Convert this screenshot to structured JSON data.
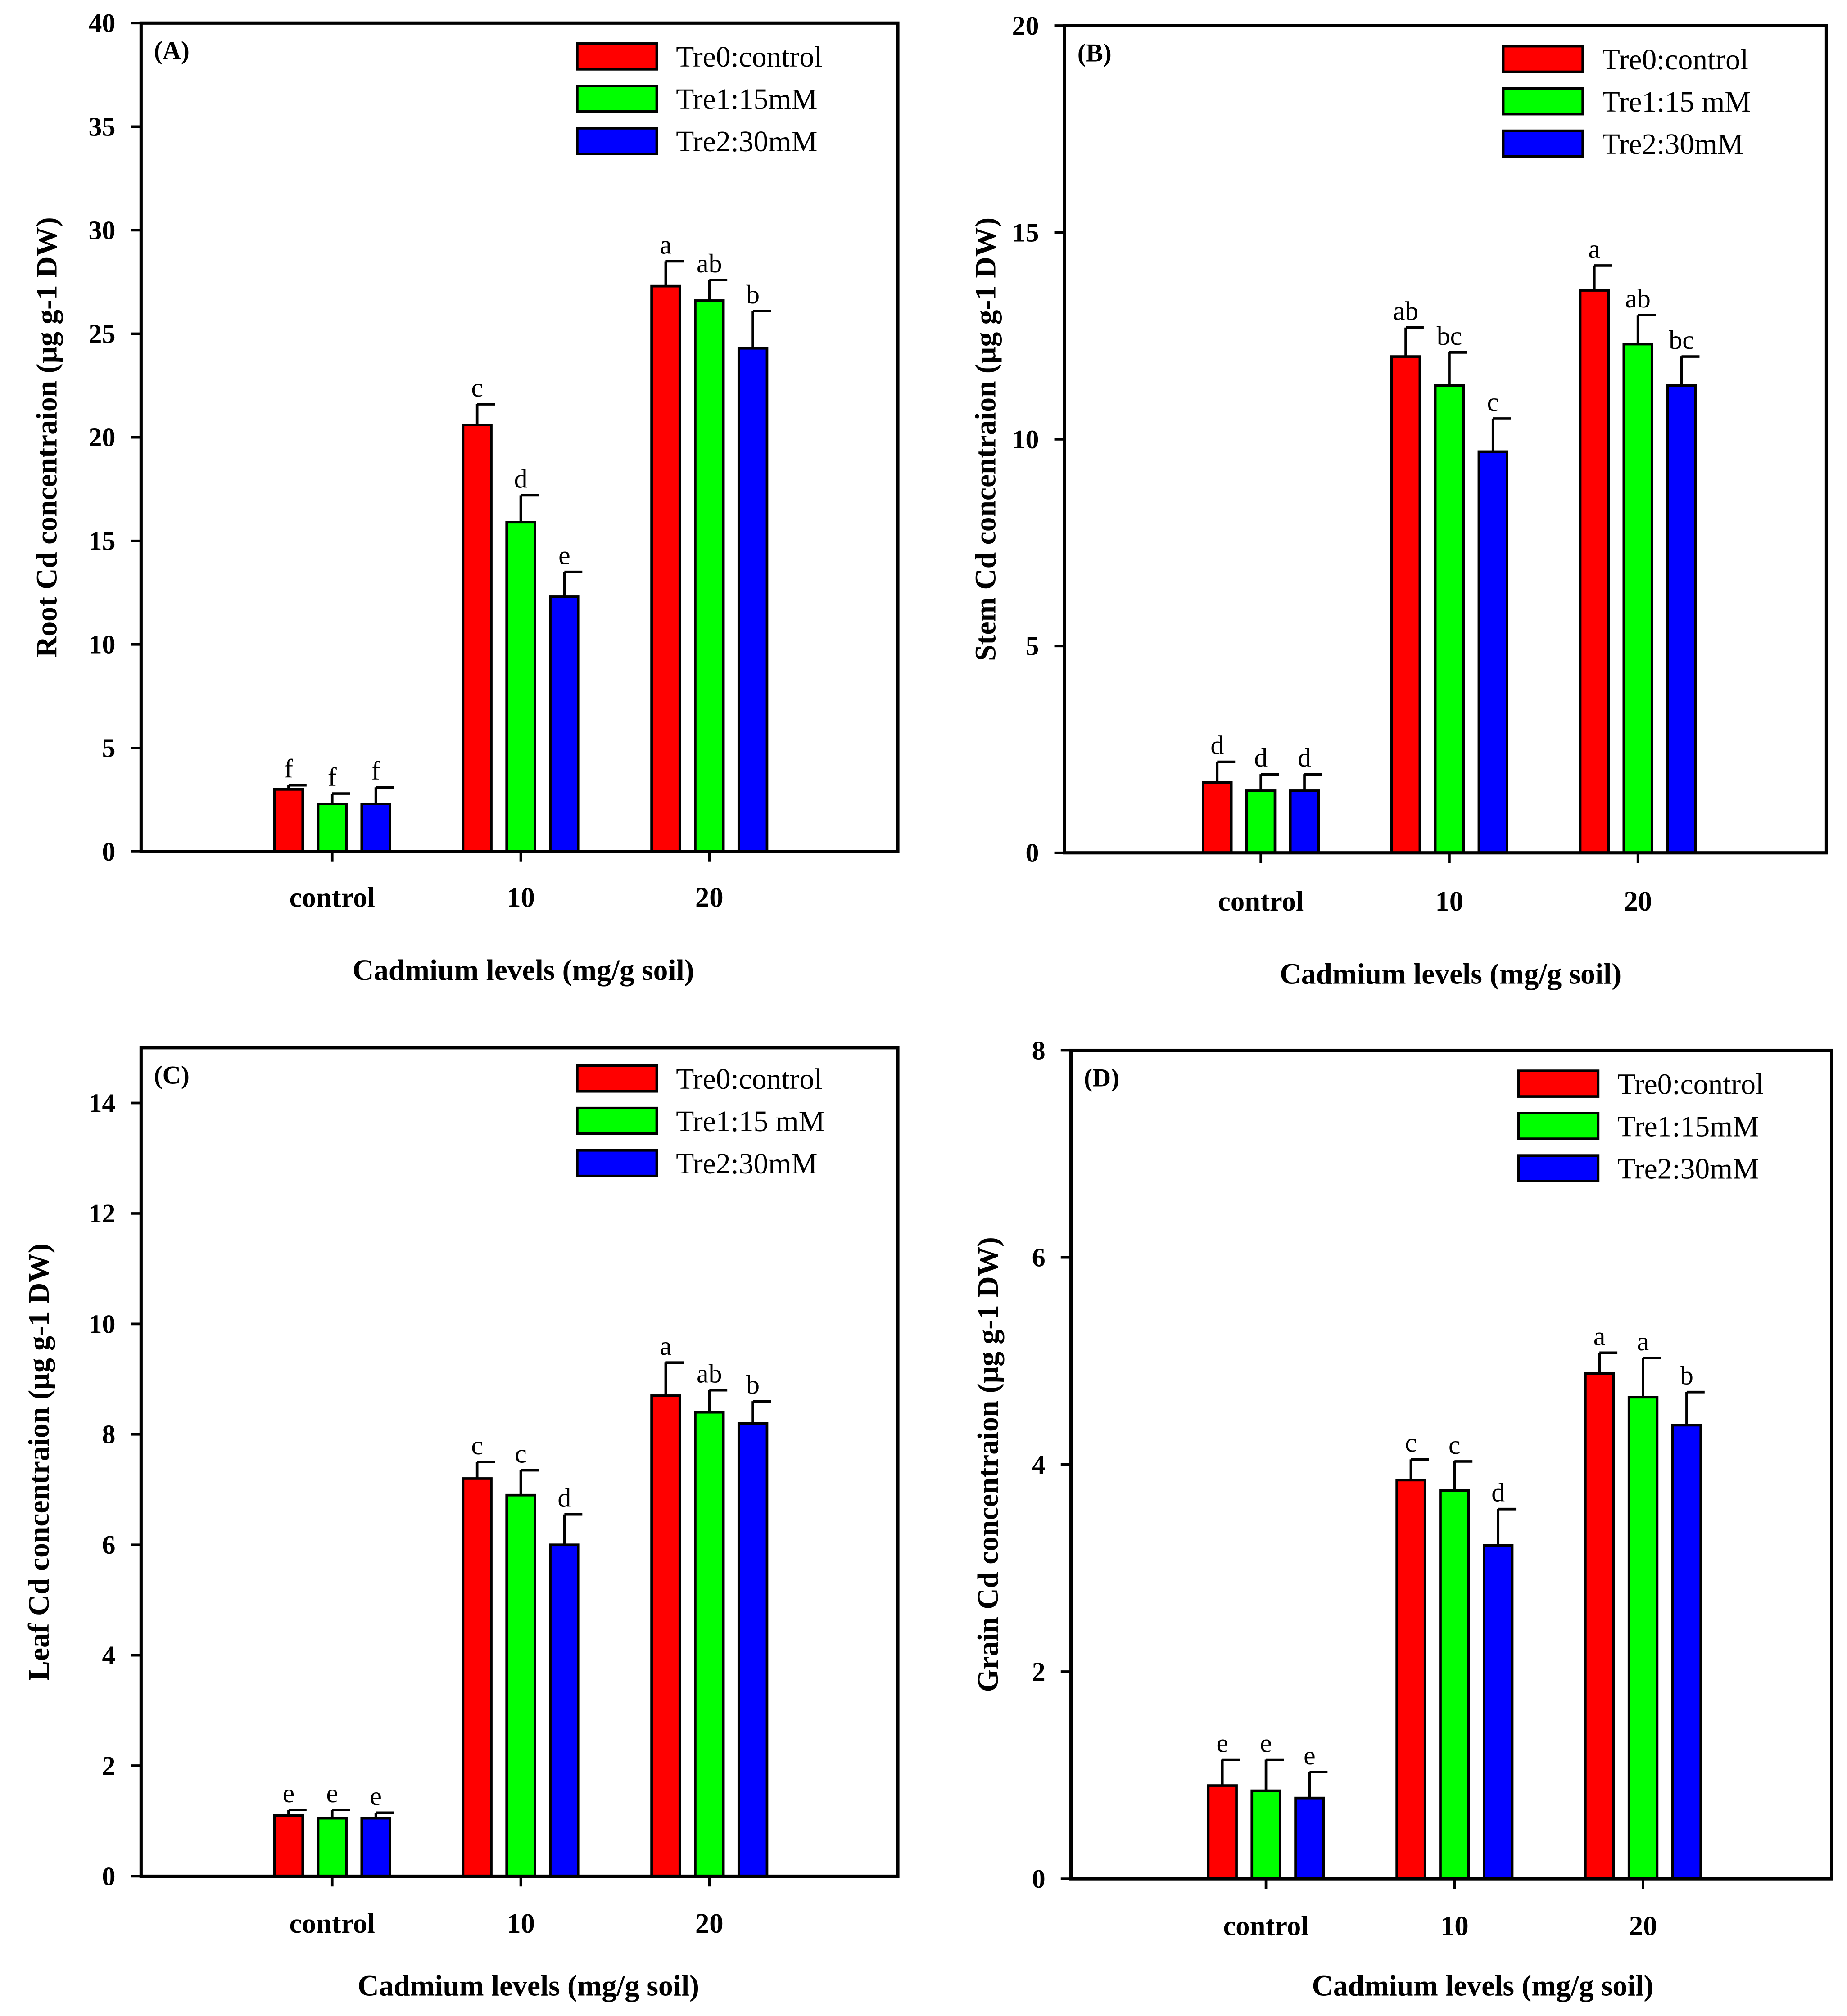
{
  "chart_data": [
    {
      "type": "bar",
      "panel": "(A)",
      "ylabel": "Root Cd concentraion (µg g-1 DW)",
      "xlabel": "Cadmium levels (mg/g soil)",
      "ylim": [
        0,
        40
      ],
      "yticks": [
        0,
        5,
        10,
        15,
        20,
        25,
        30,
        35,
        40
      ],
      "categories": [
        "control",
        "10",
        "20"
      ],
      "legend_position": "top-right",
      "series": [
        {
          "name": "Tre0:control",
          "color": "#ff0000",
          "values": [
            3.0,
            20.6,
            27.3
          ],
          "errors": [
            0.2,
            1.0,
            1.2
          ],
          "letters": [
            "f",
            "c",
            "a"
          ]
        },
        {
          "name": "Tre1:15mM",
          "color": "#00ff00",
          "values": [
            2.3,
            15.9,
            26.6
          ],
          "errors": [
            0.5,
            1.3,
            1.0
          ],
          "letters": [
            "f",
            "d",
            "ab"
          ]
        },
        {
          "name": "Tre2:30mM",
          "color": "#0000ff",
          "values": [
            2.3,
            12.3,
            24.3
          ],
          "errors": [
            0.8,
            1.2,
            1.8
          ],
          "letters": [
            "f",
            "e",
            "b"
          ]
        }
      ]
    },
    {
      "type": "bar",
      "panel": "(B)",
      "ylabel": "Stem Cd concentraion (µg g-1 DW)",
      "xlabel": "Cadmium levels (mg/g soil)",
      "ylim": [
        0,
        20
      ],
      "yticks": [
        0,
        5,
        10,
        15,
        20
      ],
      "categories": [
        "control",
        "10",
        "20"
      ],
      "legend_position": "top-right",
      "series": [
        {
          "name": "Tre0:control",
          "color": "#ff0000",
          "values": [
            1.7,
            12.0,
            13.6
          ],
          "errors": [
            0.5,
            0.7,
            0.6
          ],
          "letters": [
            "d",
            "ab",
            "a"
          ]
        },
        {
          "name": "Tre1:15 mM",
          "color": "#00ff00",
          "values": [
            1.5,
            11.3,
            12.3
          ],
          "errors": [
            0.4,
            0.8,
            0.7
          ],
          "letters": [
            "d",
            "bc",
            "ab"
          ]
        },
        {
          "name": "Tre2:30mM",
          "color": "#0000ff",
          "values": [
            1.5,
            9.7,
            11.3
          ],
          "errors": [
            0.4,
            0.8,
            0.7
          ],
          "letters": [
            "d",
            "c",
            "bc"
          ]
        }
      ]
    },
    {
      "type": "bar",
      "panel": "(C)",
      "ylabel": "Leaf Cd concentraion (µg g-1 DW)",
      "xlabel": "Cadmium levels (mg/g soil)",
      "ylim": [
        0,
        15
      ],
      "yticks": [
        0,
        2,
        4,
        6,
        8,
        10,
        12,
        14
      ],
      "categories": [
        "control",
        "10",
        "20"
      ],
      "legend_position": "top-right",
      "series": [
        {
          "name": "Tre0:control",
          "color": "#ff0000",
          "values": [
            1.1,
            7.2,
            8.7
          ],
          "errors": [
            0.1,
            0.3,
            0.6
          ],
          "letters": [
            "e",
            "c",
            "a"
          ]
        },
        {
          "name": "Tre1:15 mM",
          "color": "#00ff00",
          "values": [
            1.05,
            6.9,
            8.4
          ],
          "errors": [
            0.15,
            0.45,
            0.4
          ],
          "letters": [
            "e",
            "c",
            "ab"
          ]
        },
        {
          "name": "Tre2:30mM",
          "color": "#0000ff",
          "values": [
            1.05,
            6.0,
            8.2
          ],
          "errors": [
            0.1,
            0.55,
            0.4
          ],
          "letters": [
            "e",
            "d",
            "b"
          ]
        }
      ]
    },
    {
      "type": "bar",
      "panel": "(D)",
      "ylabel": "Grain Cd concentraion (µg g-1 DW)",
      "xlabel": "Cadmium levels (mg/g soil)",
      "ylim": [
        0,
        8
      ],
      "yticks": [
        0,
        2,
        4,
        6,
        8
      ],
      "categories": [
        "control",
        "10",
        "20"
      ],
      "legend_position": "top-right",
      "series": [
        {
          "name": "Tre0:control",
          "color": "#ff0000",
          "values": [
            0.9,
            3.85,
            4.88
          ],
          "errors": [
            0.25,
            0.2,
            0.2
          ],
          "letters": [
            "e",
            "c",
            "a"
          ]
        },
        {
          "name": "Tre1:15mM",
          "color": "#00ff00",
          "values": [
            0.85,
            3.75,
            4.65
          ],
          "errors": [
            0.3,
            0.28,
            0.38
          ],
          "letters": [
            "e",
            "c",
            "a"
          ]
        },
        {
          "name": "Tre2:30mM",
          "color": "#0000ff",
          "values": [
            0.78,
            3.22,
            4.38
          ],
          "errors": [
            0.25,
            0.35,
            0.32
          ],
          "letters": [
            "e",
            "d",
            "b"
          ]
        }
      ]
    }
  ]
}
